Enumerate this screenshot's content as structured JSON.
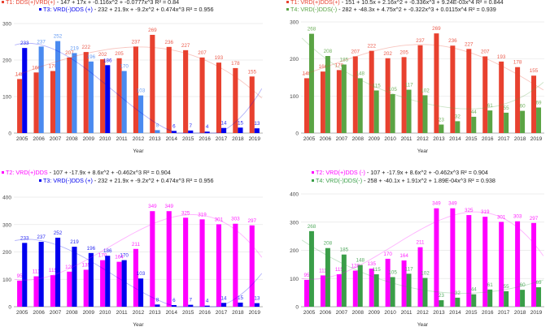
{
  "chart_data": [
    {
      "type": "bar",
      "xlabel": "Year",
      "ylim": [
        0,
        300
      ],
      "yticks": [
        0,
        100,
        200,
        300
      ],
      "categories": [
        "2005",
        "2006",
        "2007",
        "2008",
        "2009",
        "2010",
        "2011",
        "2012",
        "2013",
        "2014",
        "2015",
        "2016",
        "2017",
        "2018",
        "2019"
      ],
      "series": [
        {
          "name": "T1: DDS(+)VRD(+)",
          "equation": "147 + 17x + -0.116x^2 + -0.0777x^3 R² = 0.84",
          "coef": [
            147,
            17,
            -0.116,
            -0.0777
          ],
          "color": "#e8412f",
          "values": [
            148,
            166,
            170,
            207,
            222,
            202,
            205,
            237,
            269,
            236,
            227,
            207,
            193,
            178,
            155
          ]
        },
        {
          "name": "T3: VRD(-)DDS (+)",
          "equation": "232 + 21.9x + -9.2x^2 + 0.474x^3 R² = 0.956",
          "coef": [
            232,
            21.9,
            -9.2,
            0.474
          ],
          "color": "#0000ee",
          "alt_color": "#4a8af0",
          "values": [
            233,
            237,
            252,
            219,
            196,
            186,
            170,
            103,
            8,
            6,
            7,
            4,
            14,
            15,
            13
          ]
        }
      ]
    },
    {
      "type": "bar",
      "xlabel": "Year",
      "ylim": [
        0,
        300
      ],
      "yticks": [
        0,
        100,
        200,
        300
      ],
      "categories": [
        "2005",
        "2006",
        "2007",
        "2008",
        "2009",
        "2010",
        "2011",
        "2012",
        "2013",
        "2014",
        "2015",
        "2016",
        "2017",
        "2018",
        "2019"
      ],
      "series": [
        {
          "name": "T1: VRD(+)DDS(+)",
          "equation": "151 + 10.5x + 2.16x^2 + -0.336x^3 + 9.24E-03x^4 R² = 0.844",
          "coef": [
            151,
            10.5,
            2.16,
            -0.336,
            0.00924
          ],
          "color": "#e8412f",
          "values": [
            148,
            166,
            170,
            207,
            222,
            202,
            205,
            237,
            269,
            236,
            227,
            207,
            193,
            178,
            155
          ]
        },
        {
          "name": "T4: VRD(-)DDS(-)",
          "equation": "282 + -48.3x + 4.75x^2 + -0.322x^3 + 0.0115x^4 R² = 0.939",
          "coef": [
            282,
            -48.3,
            4.75,
            -0.322,
            0.0115
          ],
          "color": "#5aa444",
          "values": [
            268,
            208,
            185,
            148,
            115,
            105,
            117,
            102,
            23,
            32,
            44,
            61,
            55,
            60,
            69
          ]
        }
      ]
    },
    {
      "type": "bar",
      "xlabel": "Year",
      "ylim": [
        0,
        400
      ],
      "yticks": [
        0,
        100,
        200,
        300,
        400
      ],
      "categories": [
        "2005",
        "2006",
        "2007",
        "2008",
        "2009",
        "2010",
        "2011",
        "2012",
        "2013",
        "2014",
        "2015",
        "2016",
        "2017",
        "2018",
        "2019"
      ],
      "series": [
        {
          "name": "T2: VRD(+)DDS",
          "equation": "107 + -17.9x + 8.6x^2 + -0.462x^3 R² = 0.904",
          "coef": [
            107,
            -17.9,
            8.6,
            -0.462
          ],
          "color": "#ff00ff",
          "values": [
            95,
            111,
            115,
            128,
            135,
            170,
            164,
            211,
            349,
            349,
            325,
            319,
            301,
            303,
            297
          ]
        },
        {
          "name": "T3: VRD(-)DDS (+)",
          "equation": "232 + 21.9x + -9.2x^2 + 0.474x^3 R² = 0.956",
          "coef": [
            232,
            21.9,
            -9.2,
            0.474
          ],
          "color": "#0000ee",
          "values": [
            233,
            237,
            252,
            219,
            196,
            186,
            170,
            103,
            8,
            6,
            7,
            4,
            14,
            15,
            13
          ]
        }
      ]
    },
    {
      "type": "bar",
      "xlabel": "Year",
      "ylim": [
        0,
        400
      ],
      "yticks": [
        0,
        100,
        200,
        300,
        400
      ],
      "categories": [
        "2005",
        "2006",
        "2007",
        "2008",
        "2009",
        "2010",
        "2011",
        "2012",
        "2013",
        "2014",
        "2015",
        "2016",
        "2017",
        "2018",
        "2019"
      ],
      "series": [
        {
          "name": "T2: VRD(+)DDS (-)",
          "equation": "107 + -17.9x + 8.6x^2 + -0.462x^3 R² = 0.904",
          "coef": [
            107,
            -17.9,
            8.6,
            -0.462
          ],
          "color": "#ff00ff",
          "values": [
            95,
            111,
            115,
            128,
            135,
            170,
            164,
            211,
            349,
            349,
            325,
            319,
            301,
            303,
            297
          ]
        },
        {
          "name": "T4: VRD(-)DDS(-)",
          "equation": "258 + -40.1x + 1.91x^2 + 1.89E-04x^3 R² = 0.938",
          "coef": [
            258,
            -40.1,
            1.91,
            0.000189
          ],
          "color": "#3a9e48",
          "values": [
            268,
            208,
            185,
            148,
            115,
            105,
            117,
            102,
            23,
            32,
            44,
            61,
            55,
            60,
            69
          ]
        }
      ]
    }
  ]
}
